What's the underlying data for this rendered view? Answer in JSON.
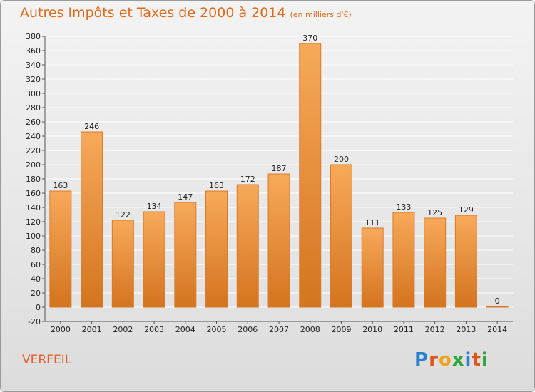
{
  "header": {
    "title": "Autres Impôts et Taxes de 2000 à 2014",
    "subtitle": "(en milliers d'€)"
  },
  "footer": {
    "commune": "VERFEIL",
    "logo_letters": [
      {
        "ch": "P",
        "color": "#2a7fd0"
      },
      {
        "ch": "r",
        "color": "#e0541c"
      },
      {
        "ch": "o",
        "color": "#f2a21c"
      },
      {
        "ch": "x",
        "color": "#2aa83c"
      },
      {
        "ch": "i",
        "color": "#2a7fd0"
      },
      {
        "ch": "t",
        "color": "#e0541c"
      },
      {
        "ch": "i",
        "color": "#2aa83c"
      }
    ]
  },
  "colors": {
    "bar_top": "#f7a95a",
    "bar_bottom": "#d4741f",
    "grid": "#ffffff",
    "title": "#e06a1a"
  },
  "chart_data": {
    "type": "bar",
    "title": "Autres Impôts et Taxes de 2000 à 2014",
    "subtitle": "(en milliers d'€)",
    "categories": [
      "2000",
      "2001",
      "2002",
      "2003",
      "2004",
      "2005",
      "2006",
      "2007",
      "2008",
      "2009",
      "2010",
      "2011",
      "2012",
      "2013",
      "2014"
    ],
    "values": [
      163,
      246,
      122,
      134,
      147,
      163,
      172,
      187,
      370,
      200,
      111,
      133,
      125,
      129,
      0
    ],
    "xlabel": "",
    "ylabel": "",
    "ylim": [
      -20,
      380
    ],
    "yticks": [
      -20,
      0,
      20,
      40,
      60,
      80,
      100,
      120,
      140,
      160,
      180,
      200,
      220,
      240,
      260,
      280,
      300,
      320,
      340,
      360,
      380
    ],
    "grid": true,
    "legend": "none"
  }
}
